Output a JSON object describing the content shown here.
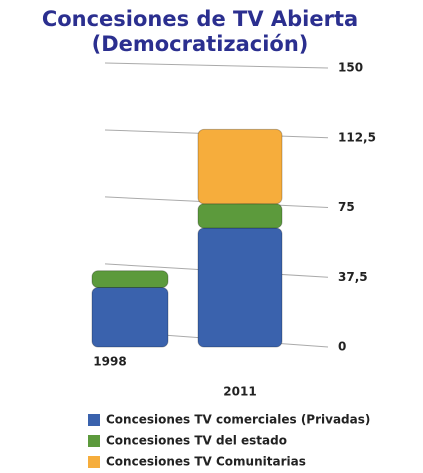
{
  "chart_data": {
    "type": "stacked_bar",
    "title": "Concesiones de TV Abierta",
    "subtitle": "(Democratización)",
    "categories": [
      "1998",
      "2011"
    ],
    "series": [
      {
        "name": "Concesiones TV comerciales (Privadas)",
        "color": "#3a62ad",
        "values": [
          32,
          64
        ]
      },
      {
        "name": "Concesiones TV del estado",
        "color": "#5c9a3c",
        "values": [
          9,
          13
        ]
      },
      {
        "name": "Concesiones TV Comunitarias",
        "color": "#f6ad3c",
        "values": [
          0,
          40
        ]
      }
    ],
    "ylim": [
      0,
      150
    ],
    "yticks": [
      0,
      {
        "value": 37.5,
        "label": "37,5"
      },
      75,
      {
        "value": 112.5,
        "label": "112,5"
      },
      150
    ],
    "grid": true,
    "legend": "bottom"
  }
}
